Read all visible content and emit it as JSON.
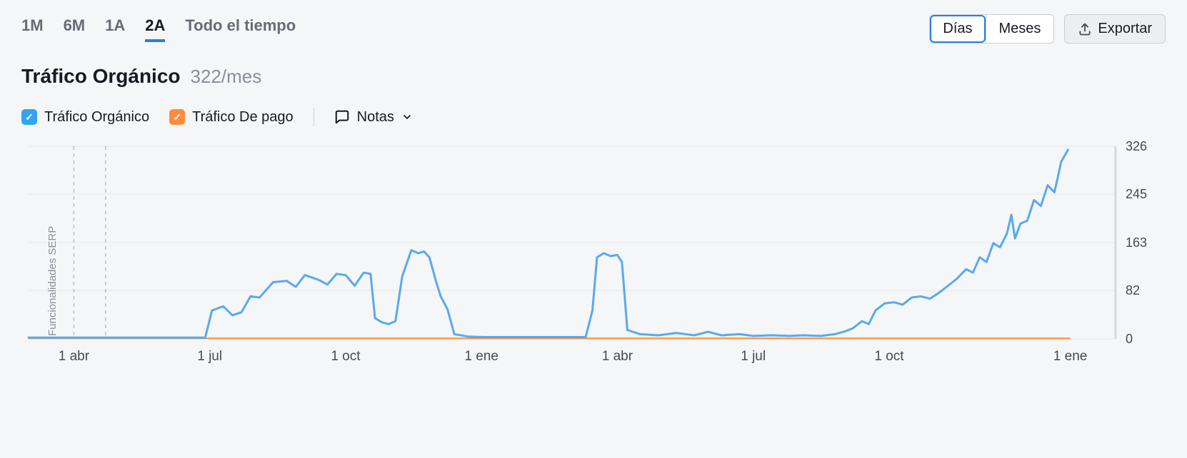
{
  "range_tabs": {
    "items": [
      "1M",
      "6M",
      "1A",
      "2A",
      "Todo el tiempo"
    ],
    "active_index": 3
  },
  "granularity": {
    "items": [
      "Días",
      "Meses"
    ],
    "active_index": 0
  },
  "export_label": "Exportar",
  "heading": {
    "title": "Tráfico Orgánico",
    "value": "322/mes"
  },
  "legend": {
    "organic": {
      "label": "Tráfico Orgánico",
      "color": "#33a3f3",
      "checked": true
    },
    "paid": {
      "label": "Tráfico De pago",
      "color": "#ff8b3d",
      "checked": true
    },
    "notes_label": "Notas"
  },
  "chart": {
    "type": "line",
    "background_color": "#f5f6f7",
    "plot_background": "#f5f6f7",
    "grid_color": "#e6e8ec",
    "line_color_organic": "#5aa9ee",
    "line_color_paid": "#ff8b3d",
    "line_width": 3,
    "y_axis": {
      "min": 0,
      "max": 326,
      "ticks": [
        0,
        82,
        163,
        245,
        326
      ],
      "label_color": "#454a54",
      "label_fontsize": 18
    },
    "x_axis": {
      "month_span": 24,
      "tick_positions": [
        1,
        4,
        7,
        10,
        13,
        16,
        19,
        23
      ],
      "tick_labels": [
        "1 abr",
        "1 jul",
        "1 oct",
        "1 ene",
        "1 abr",
        "1 jul",
        "1 oct",
        "1 ene"
      ],
      "label_color": "#454a54",
      "label_fontsize": 19
    },
    "annotation": {
      "text": "Funcionalidades SERP",
      "x_month": 0.6,
      "vert_lines_month": [
        1.0,
        1.7
      ]
    },
    "series_organic": [
      [
        0,
        2
      ],
      [
        0.5,
        2
      ],
      [
        1,
        2
      ],
      [
        1.5,
        2
      ],
      [
        2,
        2
      ],
      [
        2.5,
        2
      ],
      [
        3,
        2
      ],
      [
        3.3,
        2
      ],
      [
        3.7,
        2
      ],
      [
        3.9,
        2
      ],
      [
        4.05,
        48
      ],
      [
        4.3,
        55
      ],
      [
        4.5,
        40
      ],
      [
        4.7,
        45
      ],
      [
        4.9,
        72
      ],
      [
        5.1,
        70
      ],
      [
        5.4,
        96
      ],
      [
        5.7,
        98
      ],
      [
        5.9,
        88
      ],
      [
        6.1,
        108
      ],
      [
        6.4,
        100
      ],
      [
        6.6,
        92
      ],
      [
        6.8,
        110
      ],
      [
        7.0,
        108
      ],
      [
        7.2,
        90
      ],
      [
        7.4,
        112
      ],
      [
        7.55,
        110
      ],
      [
        7.65,
        35
      ],
      [
        7.8,
        28
      ],
      [
        7.95,
        25
      ],
      [
        8.1,
        30
      ],
      [
        8.25,
        106
      ],
      [
        8.45,
        150
      ],
      [
        8.6,
        145
      ],
      [
        8.73,
        148
      ],
      [
        8.85,
        138
      ],
      [
        9.0,
        96
      ],
      [
        9.1,
        72
      ],
      [
        9.25,
        50
      ],
      [
        9.4,
        8
      ],
      [
        9.7,
        4
      ],
      [
        10.1,
        3
      ],
      [
        10.5,
        3
      ],
      [
        11.0,
        3
      ],
      [
        11.5,
        3
      ],
      [
        12.0,
        3
      ],
      [
        12.3,
        3
      ],
      [
        12.45,
        48
      ],
      [
        12.55,
        138
      ],
      [
        12.7,
        145
      ],
      [
        12.85,
        140
      ],
      [
        13.0,
        142
      ],
      [
        13.1,
        130
      ],
      [
        13.22,
        15
      ],
      [
        13.5,
        8
      ],
      [
        13.9,
        6
      ],
      [
        14.3,
        10
      ],
      [
        14.7,
        6
      ],
      [
        15.0,
        12
      ],
      [
        15.3,
        6
      ],
      [
        15.7,
        8
      ],
      [
        16.0,
        5
      ],
      [
        16.4,
        6
      ],
      [
        16.8,
        5
      ],
      [
        17.1,
        6
      ],
      [
        17.5,
        5
      ],
      [
        17.8,
        8
      ],
      [
        18.0,
        12
      ],
      [
        18.2,
        18
      ],
      [
        18.4,
        30
      ],
      [
        18.55,
        25
      ],
      [
        18.7,
        48
      ],
      [
        18.9,
        60
      ],
      [
        19.1,
        62
      ],
      [
        19.3,
        58
      ],
      [
        19.5,
        70
      ],
      [
        19.7,
        72
      ],
      [
        19.9,
        68
      ],
      [
        20.1,
        78
      ],
      [
        20.3,
        90
      ],
      [
        20.5,
        102
      ],
      [
        20.7,
        118
      ],
      [
        20.85,
        112
      ],
      [
        21.0,
        138
      ],
      [
        21.15,
        130
      ],
      [
        21.3,
        162
      ],
      [
        21.45,
        155
      ],
      [
        21.6,
        178
      ],
      [
        21.7,
        210
      ],
      [
        21.78,
        170
      ],
      [
        21.9,
        195
      ],
      [
        22.05,
        200
      ],
      [
        22.2,
        235
      ],
      [
        22.35,
        225
      ],
      [
        22.5,
        260
      ],
      [
        22.65,
        248
      ],
      [
        22.8,
        300
      ],
      [
        22.95,
        320
      ]
    ],
    "series_paid": [
      [
        0,
        1
      ],
      [
        23,
        1
      ]
    ]
  }
}
